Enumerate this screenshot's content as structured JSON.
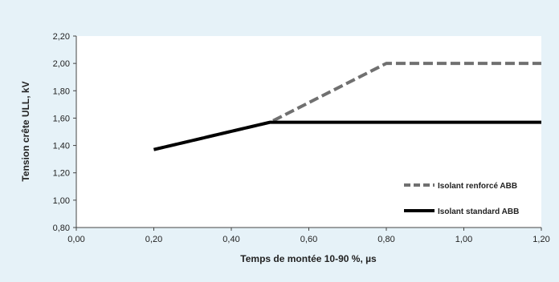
{
  "chart_data": {
    "type": "line",
    "title": "",
    "xlabel": "Temps de montée 10-90 %, µs",
    "ylabel": "Tension crête ULL, kV",
    "xlim": [
      0,
      1.2
    ],
    "ylim": [
      0.8,
      2.2
    ],
    "x_ticks": [
      0.0,
      0.2,
      0.4,
      0.6,
      0.8,
      1.0,
      1.2
    ],
    "x_tick_labels": [
      "0,00",
      "0,20",
      "0,40",
      "0,60",
      "0,80",
      "1,00",
      "1,20"
    ],
    "y_ticks": [
      0.8,
      1.0,
      1.2,
      1.4,
      1.6,
      1.8,
      2.0,
      2.2
    ],
    "y_tick_labels": [
      "0,80",
      "1,00",
      "1,20",
      "1,40",
      "1,60",
      "1,80",
      "2,00",
      "2,20"
    ],
    "grid": false,
    "legend_position": "bottom-right",
    "series": [
      {
        "name": "Isolant renforcé ABB",
        "style": "dashed",
        "color": "#707070",
        "points": [
          [
            0.2,
            1.37
          ],
          [
            0.5,
            1.57
          ],
          [
            0.8,
            2.0
          ],
          [
            1.2,
            2.0
          ]
        ]
      },
      {
        "name": "Isolant standard ABB",
        "style": "solid",
        "color": "#000000",
        "points": [
          [
            0.2,
            1.37
          ],
          [
            0.5,
            1.57
          ],
          [
            1.2,
            1.57
          ]
        ]
      }
    ]
  }
}
